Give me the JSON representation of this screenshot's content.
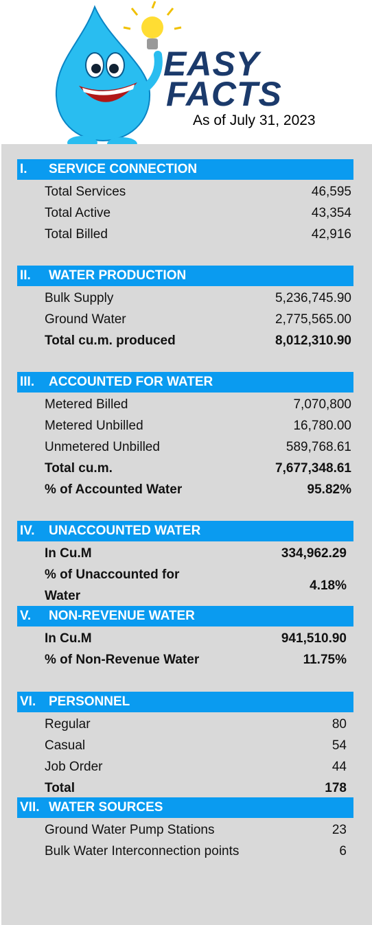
{
  "header": {
    "title_line1": "EASY",
    "title_line2": "FACTS",
    "date": "As of July 31, 2023"
  },
  "sections": [
    {
      "number": "I.",
      "title": "SERVICE CONNECTION",
      "rows": [
        {
          "label": "Total Services",
          "value": "46,595",
          "bold": false
        },
        {
          "label": "Total Active",
          "value": "43,354",
          "bold": false
        },
        {
          "label": "Total Billed",
          "value": "42,916",
          "bold": false
        }
      ]
    },
    {
      "number": "II.",
      "title": "WATER PRODUCTION",
      "rows": [
        {
          "label": "Bulk Supply",
          "value": "5,236,745.90",
          "bold": false
        },
        {
          "label": "Ground Water",
          "value": "2,775,565.00",
          "bold": false
        },
        {
          "label": "Total cu.m. produced",
          "value": "8,012,310.90",
          "bold": true
        }
      ]
    },
    {
      "number": "III.",
      "title": "ACCOUNTED FOR WATER",
      "rows": [
        {
          "label": "Metered Billed",
          "value": "7,070,800",
          "bold": false
        },
        {
          "label": "Metered Unbilled",
          "value": "16,780.00",
          "bold": false
        },
        {
          "label": "Unmetered Unbilled",
          "value": "589,768.61",
          "bold": false
        },
        {
          "label": "Total cu.m.",
          "value": "7,677,348.61",
          "bold": true
        },
        {
          "label": "% of Accounted Water",
          "value": "95.82%",
          "bold": true
        }
      ]
    },
    {
      "number": "IV.",
      "title": "UNACCOUNTED WATER",
      "rows": [
        {
          "label": "In Cu.M",
          "value": "334,962.29",
          "bold": true
        },
        {
          "label": "% of Unaccounted for Water",
          "value": "4.18%",
          "bold": true
        }
      ]
    },
    {
      "number": "V.",
      "title": "NON-REVENUE WATER",
      "rows": [
        {
          "label": "In Cu.M",
          "value": "941,510.90",
          "bold": true
        },
        {
          "label": "% of Non-Revenue Water",
          "value": "11.75%",
          "bold": true
        }
      ]
    },
    {
      "number": "VI.",
      "title": "PERSONNEL",
      "rows": [
        {
          "label": "Regular",
          "value": "80",
          "bold": false
        },
        {
          "label": "Casual",
          "value": "54",
          "bold": false
        },
        {
          "label": "Job Order",
          "value": "44",
          "bold": false
        },
        {
          "label": "Total",
          "value": "178",
          "bold": true
        }
      ]
    },
    {
      "number": "VII.",
      "title": "WATER SOURCES",
      "rows": [
        {
          "label": "Ground Water Pump Stations",
          "value": "23",
          "bold": false
        },
        {
          "label": "Bulk Water Interconnection points",
          "value": "6",
          "bold": false
        }
      ]
    }
  ]
}
